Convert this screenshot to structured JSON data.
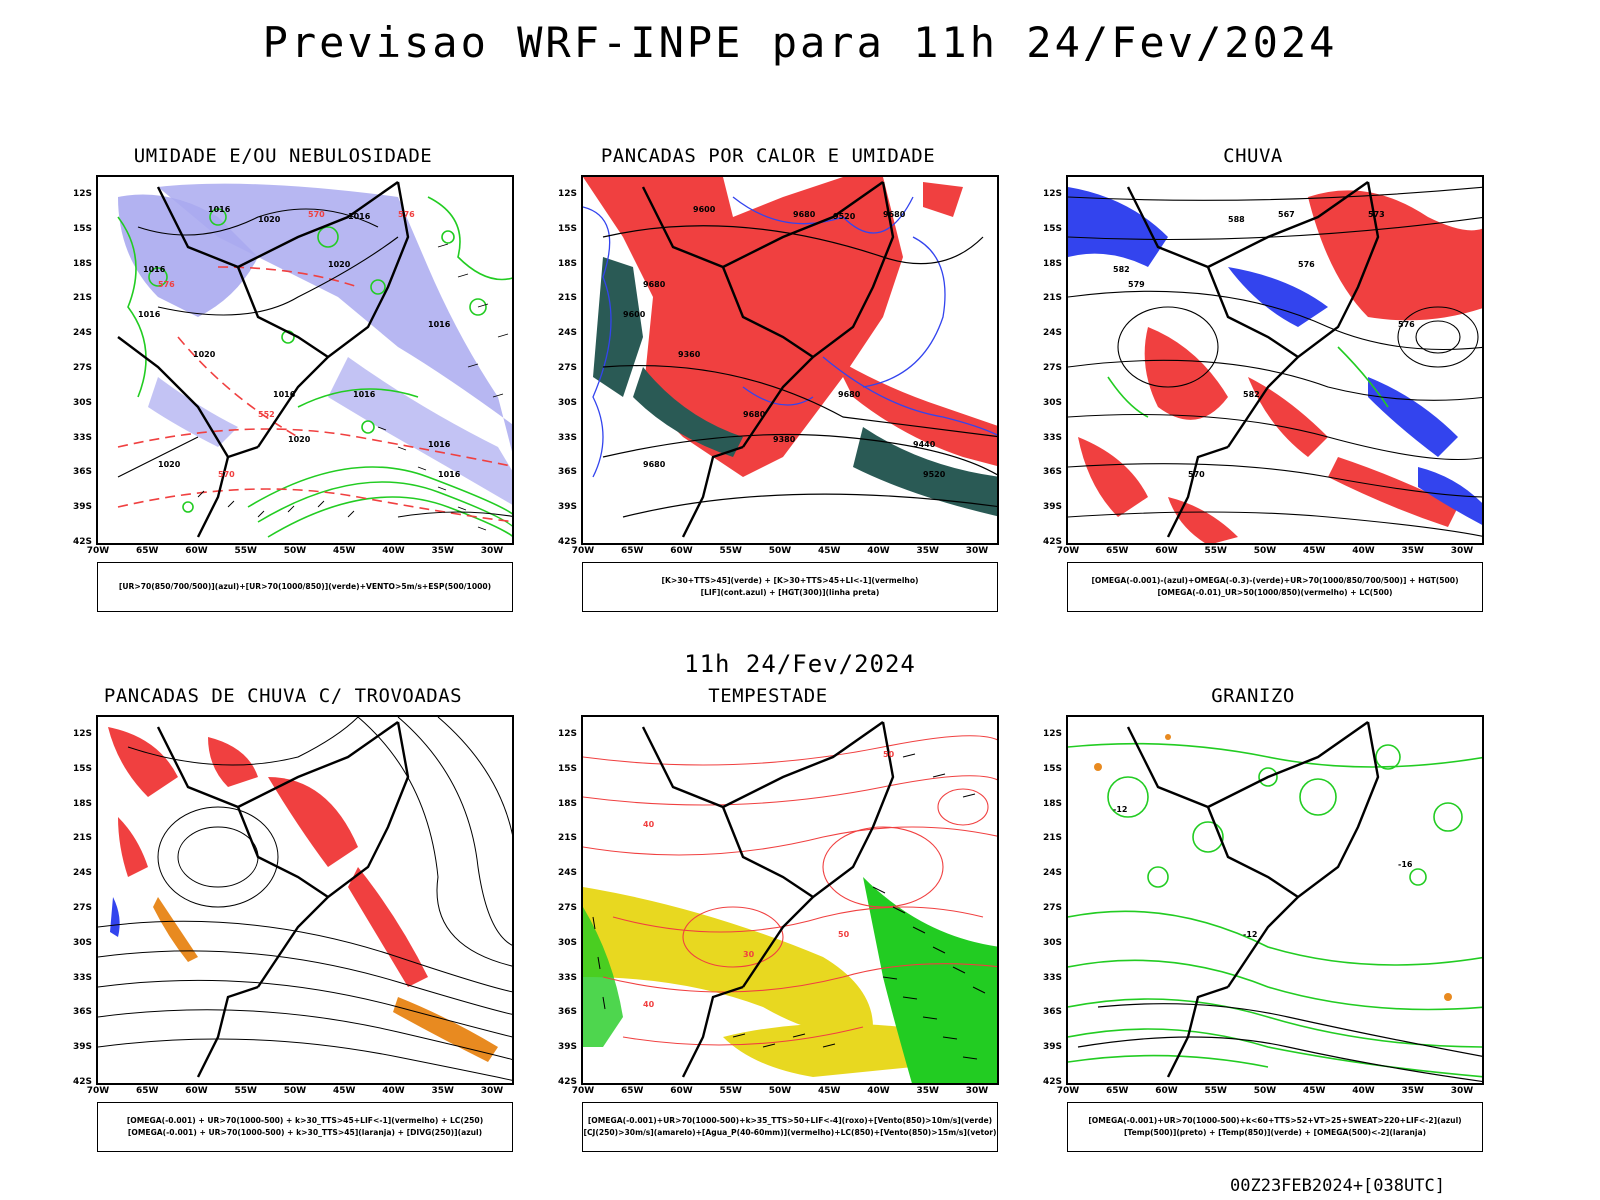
{
  "header": {
    "title": "Previsao WRF-INPE  para 11h 24/Fev/2024"
  },
  "middle_time": "11h 24/Fev/2024",
  "footer": {
    "run_stamp": "00Z23FEB2024+[038UTC]"
  },
  "axes": {
    "latitudes": [
      "12S",
      "15S",
      "18S",
      "21S",
      "24S",
      "27S",
      "30S",
      "33S",
      "36S",
      "39S",
      "42S"
    ],
    "longitudes": [
      "70W",
      "65W",
      "60W",
      "55W",
      "50W",
      "45W",
      "40W",
      "35W",
      "30W"
    ]
  },
  "colors": {
    "red": "#f04040",
    "green": "#22cc22",
    "blue": "#3344ee",
    "lavender": "#aaaaf0",
    "dark_teal": "#2a5a55",
    "yellow": "#e8d820",
    "orange": "#e88a20",
    "black": "#000000"
  },
  "panels": [
    {
      "id": "umidade",
      "title": "UMIDADE E/OU NEBULOSIDADE",
      "legend": [
        "[UR>70(850/700/500)](azul)+[UR>70(1000/850)](verde)+VENTO>5m/s+ESP(500/1000)"
      ],
      "map_labels": [
        "1016",
        "1016",
        "1016",
        "1016",
        "1016",
        "1020",
        "1020",
        "1020",
        "1016",
        "1016",
        "1016",
        "1020",
        "570",
        "570",
        "576",
        "576",
        "552",
        "1016",
        "1020"
      ]
    },
    {
      "id": "pancadas_calor",
      "title": "PANCADAS POR CALOR E UMIDADE",
      "legend": [
        "[K>30+TTS>45](verde) + [K>30+TTS>45+LI<-1](vermelho)",
        "[LIF](cont.azul) + [HGT(300)](linha preta)"
      ],
      "map_labels": [
        "9680",
        "9680",
        "9680",
        "9680",
        "9680",
        "9680",
        "9600",
        "9520",
        "9600",
        "9520",
        "9440",
        "9360",
        "9380"
      ]
    },
    {
      "id": "chuva",
      "title": "CHUVA",
      "legend": [
        "[OMEGA(-0.001)-(azul)+OMEGA(-0.3)-(verde)+UR>70(1000/850/700/500)] + HGT(500)",
        "[OMEGA(-0.01)_UR>50(1000/850)(vermelho) + LC(500)"
      ],
      "map_labels": [
        "588",
        "582",
        "582",
        "576",
        "576",
        "570",
        "567",
        "573",
        "579"
      ]
    },
    {
      "id": "trovoadas",
      "title": "PANCADAS DE CHUVA C/ TROVOADAS",
      "legend": [
        "[OMEGA(-0.001) + UR>70(1000-500) + k>30_TTS>45+LIF<-1](vermelho) + LC(250)",
        "[OMEGA(-0.001) + UR>70(1000-500) + k>30_TTS>45](laranja) + [DIVG(250)](azul)"
      ],
      "map_labels": []
    },
    {
      "id": "tempestade",
      "title": "TEMPESTADE",
      "legend": [
        "[OMEGA(-0.001)+UR>70(1000-500)+k>35_TTS>50+LIF<-4](roxo)+[Vento(850)>10m/s](verde)",
        "[CJ(250)>30m/s](amarelo)+[Agua_P(40-60mm)](vermelho)+LC(850)+[Vento(850)>15m/s](vetor)"
      ],
      "map_labels": [
        "50",
        "40",
        "30",
        "50",
        "40"
      ]
    },
    {
      "id": "granizo",
      "title": "GRANIZO",
      "legend": [
        "[OMEGA(-0.001)+UR>70(1000-500)+k<60+TTS>52+VT>25+SWEAT>220+LIF<-2](azul)",
        "[Temp(500)](preto) + [Temp(850)](verde) + [OMEGA(500)<-2](laranja)"
      ],
      "map_labels": [
        "-12",
        "-12",
        "-16"
      ]
    }
  ]
}
